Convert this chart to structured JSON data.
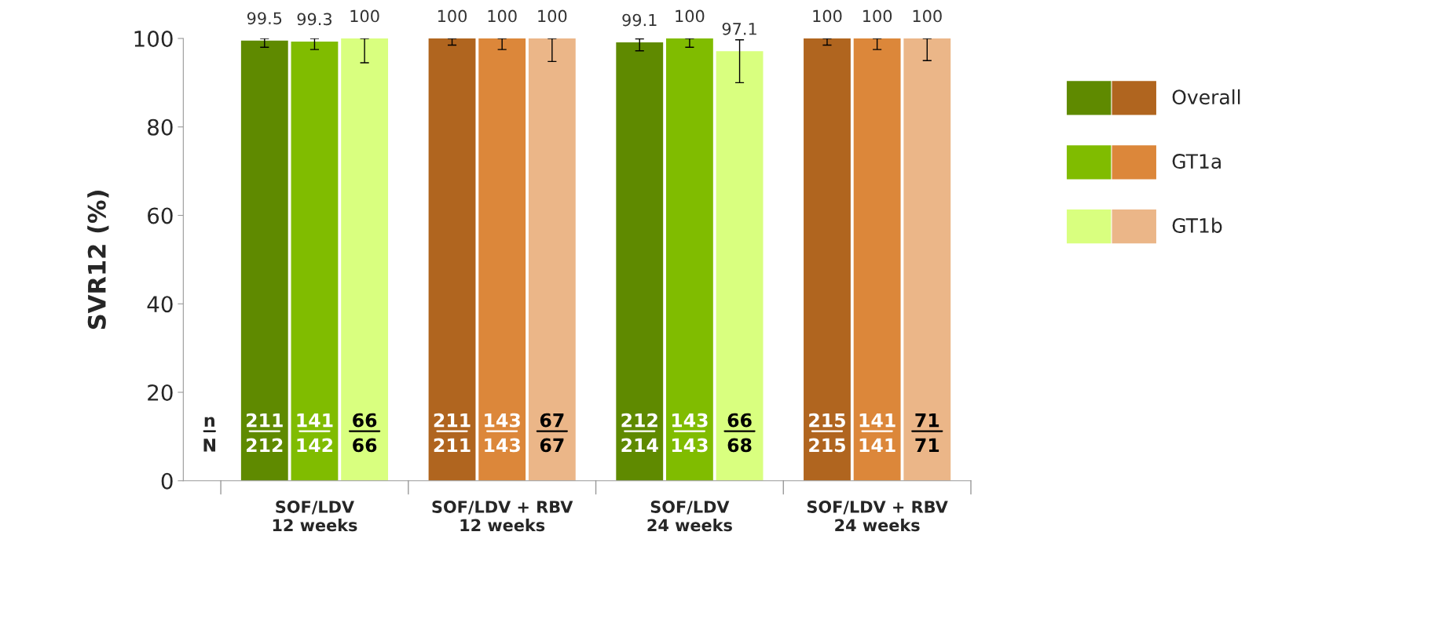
{
  "chart_data": {
    "type": "bar",
    "ylabel": "SVR12 (%)",
    "categories": [
      "SOF/LDV\n12 weeks",
      "SOF/LDV + RBV\n12 weeks",
      "SOF/LDV\n24 weeks",
      "SOF/LDV + RBV\n24 weeks"
    ],
    "series": [
      {
        "name": "Overall",
        "colors": [
          "#5f8a00",
          "#b0651f",
          "#5f8a00",
          "#b0651f"
        ],
        "values": [
          99.5,
          100,
          99.1,
          100
        ],
        "errors": [
          [
            98,
            100
          ],
          [
            98.5,
            100
          ],
          [
            97.2,
            99.9
          ],
          [
            98.5,
            100
          ]
        ]
      },
      {
        "name": "GT1a",
        "colors": [
          "#80bc00",
          "#dc873a",
          "#80bc00",
          "#dc873a"
        ],
        "values": [
          99.3,
          100,
          100,
          100
        ],
        "errors": [
          [
            97.5,
            100
          ],
          [
            97.5,
            100
          ],
          [
            98,
            100
          ],
          [
            97.5,
            100
          ]
        ]
      },
      {
        "name": "GT1b",
        "colors": [
          "#d9ff7f",
          "#ebb688",
          "#d9ff7f",
          "#ebb688"
        ],
        "values": [
          100,
          100,
          97.1,
          100
        ],
        "errors": [
          [
            94.5,
            100
          ],
          [
            94.8,
            100
          ],
          [
            90,
            99.7
          ],
          [
            95,
            100
          ]
        ]
      }
    ],
    "data_labels": true,
    "ylim": [
      0,
      100
    ],
    "yticks": [
      0,
      20,
      40,
      60,
      80,
      100
    ],
    "grid": false,
    "legend": "right",
    "annotations": [
      "n\nN",
      "211\n212",
      "211\n211",
      "212\n214",
      "215\n215",
      "141\n142",
      "143\n143",
      "143\n143",
      "141\n141",
      "66\n66",
      "67\n67",
      "66\n68",
      "71\n71"
    ]
  }
}
